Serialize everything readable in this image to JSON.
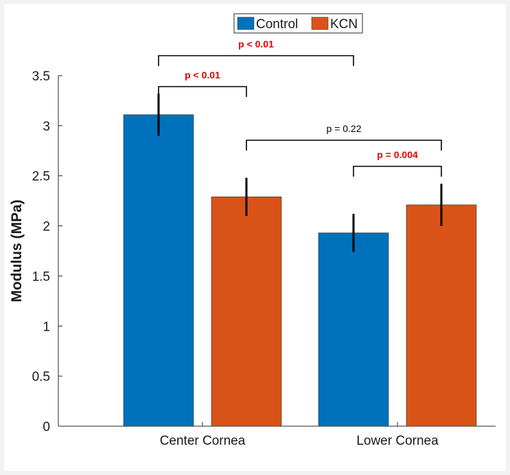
{
  "chart_data": {
    "type": "bar",
    "categories": [
      "Center Cornea",
      "Lower Cornea"
    ],
    "series": [
      {
        "name": "Control",
        "values": [
          3.11,
          1.93
        ],
        "errors": [
          0.21,
          0.19
        ],
        "color": "#0072bd"
      },
      {
        "name": "KCN",
        "values": [
          2.29,
          2.21
        ],
        "errors": [
          0.19,
          0.21
        ],
        "color": "#d95319"
      }
    ],
    "ylabel": "Modulus (MPa)",
    "xlabel": "",
    "ylim": [
      0,
      3.5
    ],
    "yticks": [
      0,
      0.5,
      1,
      1.5,
      2,
      2.5,
      3,
      3.5
    ],
    "ytick_labels": [
      "0",
      "0.5",
      "1",
      "1.5",
      "2",
      "2.5",
      "3",
      "3.5"
    ],
    "legend_position": "top",
    "grid": false,
    "significance": [
      {
        "from": "Control|Center Cornea",
        "to": "Control|Lower Cornea",
        "label": "p < 0.01",
        "color": "#e00000",
        "bold": true
      },
      {
        "from": "Control|Center Cornea",
        "to": "KCN|Center Cornea",
        "label": "p < 0.01",
        "color": "#e00000",
        "bold": true
      },
      {
        "from": "KCN|Center Cornea",
        "to": "KCN|Lower Cornea",
        "label": "p = 0.22",
        "color": "#000000",
        "bold": false
      },
      {
        "from": "Control|Lower Cornea",
        "to": "KCN|Lower Cornea",
        "label": "p = 0.004",
        "color": "#e00000",
        "bold": true
      }
    ]
  }
}
